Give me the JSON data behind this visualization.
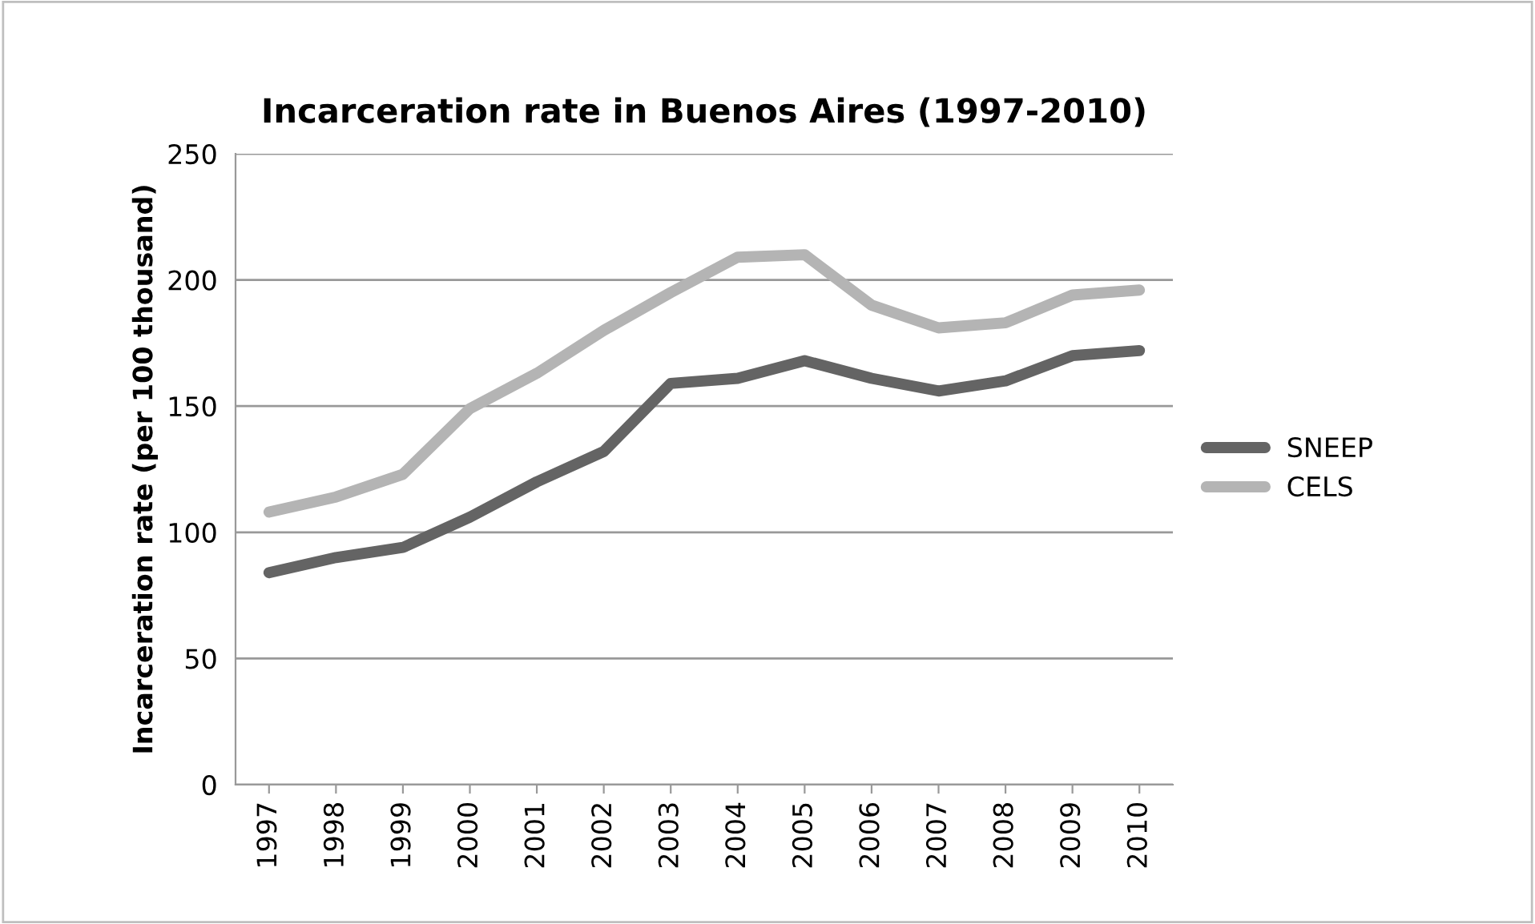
{
  "chart_data": {
    "type": "line",
    "title": "Incarceration rate in Buenos Aires (1997-2010)",
    "ylabel": "Incarceration rate (per 100 thousand)",
    "categories": [
      "1997",
      "1998",
      "1999",
      "2000",
      "2001",
      "2002",
      "2003",
      "2004",
      "2005",
      "2006",
      "2007",
      "2008",
      "2009",
      "2010"
    ],
    "series": [
      {
        "name": "SNEEP",
        "color": "#646464",
        "values": [
          84,
          90,
          94,
          106,
          120,
          132,
          159,
          161,
          168,
          161,
          156,
          160,
          170,
          172
        ]
      },
      {
        "name": "CELS",
        "color": "#b4b4b4",
        "values": [
          108,
          114,
          123,
          149,
          163,
          180,
          195,
          209,
          210,
          190,
          181,
          183,
          194,
          196
        ]
      }
    ],
    "ylim": [
      0,
      250
    ],
    "yticks": [
      0,
      50,
      100,
      150,
      200,
      250
    ],
    "grid": "y",
    "legend": "right",
    "marker": "none",
    "line_style": "solid"
  }
}
